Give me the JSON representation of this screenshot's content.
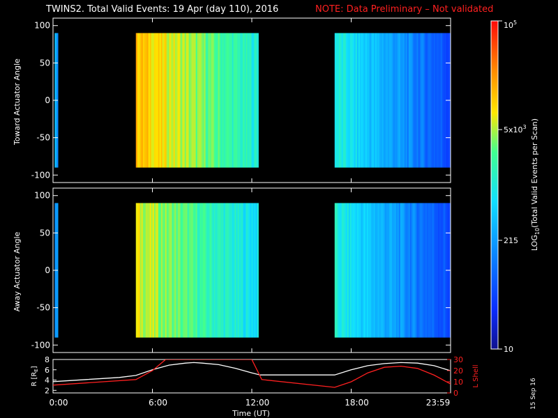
{
  "header": {
    "title": "TWINS2. Total Valid Events: 19 Apr (day 110), 2016",
    "note": "NOTE: Data Preliminary – Not validated"
  },
  "colors": {
    "background": "#000000",
    "axis": "#ffffff",
    "note": "#ff2020",
    "l_shell": "#ff2020",
    "r_line": "#ffffff"
  },
  "colorbar": {
    "label": "LOG10(Total Valid Events per Scan)",
    "label_parts": {
      "pre": "LOG",
      "sub": "10",
      "post": "(Total Valid Events per Scan)"
    },
    "ticks": [
      "10",
      "215",
      "5x10^3",
      "10^5"
    ],
    "tick_labels": {
      "t10": "10",
      "t215": "215",
      "t5e3_base": "5x10",
      "t5e3_exp": "3",
      "t1e5_base": "10",
      "t1e5_exp": "5"
    },
    "range": [
      10,
      100000
    ],
    "scale": "log",
    "colormap": "rainbow"
  },
  "side_date": "15 Sep 16",
  "chart_data": [
    {
      "type": "heatmap",
      "panel": "top",
      "ylabel": "Toward Actuator Angle",
      "ylim": [
        -110,
        110
      ],
      "yticks": [
        "100",
        "50",
        "0",
        "-50",
        "-100"
      ],
      "x_range_hours": [
        0,
        24
      ],
      "data_intervals": [
        {
          "start": 0.1,
          "end": 0.3,
          "level": 0.35
        },
        {
          "start": 5.0,
          "end": 12.4,
          "level_start": 0.78,
          "level_end": 0.5
        },
        {
          "start": 17.0,
          "end": 23.99,
          "level_start": 0.5,
          "level_end": 0.18
        }
      ]
    },
    {
      "type": "heatmap",
      "panel": "middle",
      "ylabel": "Away Actuator Angle",
      "ylim": [
        -110,
        110
      ],
      "yticks": [
        "100",
        "50",
        "0",
        "-50",
        "-100"
      ],
      "x_range_hours": [
        0,
        24
      ],
      "data_intervals": [
        {
          "start": 0.1,
          "end": 0.3,
          "level": 0.35
        },
        {
          "start": 5.0,
          "end": 12.4,
          "level_start": 0.7,
          "level_end": 0.45
        },
        {
          "start": 17.0,
          "end": 23.99,
          "level_start": 0.5,
          "level_end": 0.18
        }
      ]
    },
    {
      "type": "line",
      "panel": "orbit",
      "ylabel": "R [RE]",
      "ylabel_parts": {
        "pre": "R [R",
        "sub": "E",
        "post": "]"
      },
      "yticks": [
        "8",
        "6",
        "4",
        "2"
      ],
      "ylim": [
        1.5,
        8
      ],
      "y2label": "L Shell",
      "y2ticks": [
        "30",
        "20",
        "10",
        "0"
      ],
      "y2lim": [
        0,
        30
      ],
      "xlabel": "Time (UT)",
      "xticks": [
        "0:00",
        "6:00",
        "12:00",
        "18:00",
        "23:59"
      ],
      "series": [
        {
          "name": "R [RE]",
          "x": [
            0,
            2,
            4,
            5,
            6,
            7,
            8,
            8.5,
            9,
            10,
            11,
            12,
            12.5,
            14,
            16,
            17,
            18,
            19,
            20,
            21,
            22,
            23,
            24
          ],
          "y": [
            3.7,
            4.1,
            4.5,
            4.9,
            6.0,
            6.9,
            7.3,
            7.4,
            7.3,
            7.0,
            6.3,
            5.4,
            5.0,
            5.0,
            5.0,
            5.0,
            6.0,
            6.8,
            7.2,
            7.4,
            7.3,
            6.8,
            5.8
          ]
        },
        {
          "name": "L Shell",
          "x": [
            0,
            5,
            6.0,
            6.8,
            12.0,
            12.6,
            17.0,
            18.0,
            19.0,
            20.0,
            21.0,
            22.0,
            23.0,
            24.0
          ],
          "y": [
            7,
            12,
            20,
            30,
            30,
            12,
            5,
            10,
            18,
            23,
            24,
            22,
            16,
            8
          ]
        }
      ]
    }
  ]
}
